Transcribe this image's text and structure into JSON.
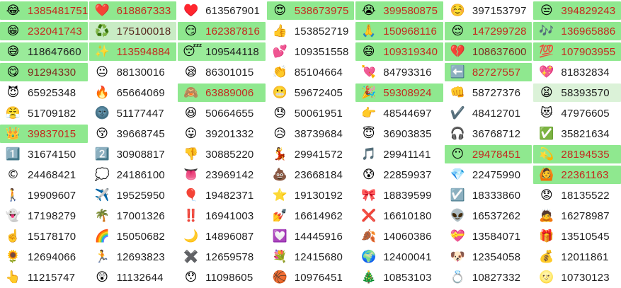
{
  "app": {
    "title": "emoji-usage-counter-grid"
  },
  "colors": {
    "flash_bg": "#8fe88f",
    "flash_text": "#c4281e",
    "flash_text_dark": "#7e2b1e",
    "fade_bg": "#c9ecc5",
    "fade_bg_light": "#dbf2d8",
    "idle_bg": "#ffffff",
    "idle_text": "#1f1f1f"
  },
  "grid": {
    "columns": 7,
    "rows": 14,
    "cells": [
      {
        "emoji": "😂",
        "name": "face-with-tears-of-joy",
        "value": "1385481751",
        "state": "flash"
      },
      {
        "emoji": "❤️",
        "name": "red-heart",
        "value": "618867333",
        "state": "flash"
      },
      {
        "emoji": "♥️",
        "name": "heart-suit",
        "value": "613567901",
        "state": "idle"
      },
      {
        "emoji": "😍",
        "name": "smiling-face-heart-eyes",
        "value": "538673975",
        "state": "flash"
      },
      {
        "emoji": "😭",
        "name": "loudly-crying-face",
        "value": "399580875",
        "state": "flash"
      },
      {
        "emoji": "☺️",
        "name": "smiling-face",
        "value": "397153797",
        "state": "idle"
      },
      {
        "emoji": "😒",
        "name": "unamused-face",
        "value": "394829243",
        "state": "flash"
      },
      {
        "emoji": "😁",
        "name": "beaming-face",
        "value": "232041743",
        "state": "flash"
      },
      {
        "emoji": "♻️",
        "name": "recycling-symbol",
        "value": "175100018",
        "state": "pale"
      },
      {
        "emoji": "😏",
        "name": "smirking-face",
        "value": "162387816",
        "state": "flash"
      },
      {
        "emoji": "👍",
        "name": "thumbs-up",
        "value": "153852719",
        "state": "idle"
      },
      {
        "emoji": "🙏",
        "name": "folded-hands",
        "value": "150968116",
        "state": "flash"
      },
      {
        "emoji": "😌",
        "name": "relieved-face",
        "value": "147299728",
        "state": "flash"
      },
      {
        "emoji": "🎶",
        "name": "musical-notes",
        "value": "136965886",
        "state": "flash"
      },
      {
        "emoji": "😅",
        "name": "grinning-face-with-sweat",
        "value": "118647660",
        "state": "green"
      },
      {
        "emoji": "✨",
        "name": "sparkles",
        "value": "113594884",
        "state": "flash"
      },
      {
        "emoji": "😴",
        "name": "sleeping-face",
        "value": "109544118",
        "state": "green"
      },
      {
        "emoji": "💕",
        "name": "two-hearts",
        "value": "109351558",
        "state": "idle"
      },
      {
        "emoji": "😄",
        "name": "grinning-face-smiling-eyes",
        "value": "109319340",
        "state": "flash"
      },
      {
        "emoji": "💔",
        "name": "broken-heart",
        "value": "108637600",
        "state": "flash2"
      },
      {
        "emoji": "💯",
        "name": "hundred-points",
        "value": "107903955",
        "state": "flash"
      },
      {
        "emoji": "😋",
        "name": "face-savoring-food",
        "value": "91294330",
        "state": "flash2"
      },
      {
        "emoji": "😐",
        "name": "neutral-face",
        "value": "88130016",
        "state": "idle"
      },
      {
        "emoji": "😪",
        "name": "sleepy-face",
        "value": "86301015",
        "state": "idle"
      },
      {
        "emoji": "👏",
        "name": "clapping-hands",
        "value": "85104664",
        "state": "idle"
      },
      {
        "emoji": "💘",
        "name": "heart-with-arrow",
        "value": "84793316",
        "state": "idle"
      },
      {
        "emoji": "⬅️",
        "name": "left-arrow",
        "value": "82727557",
        "state": "flash"
      },
      {
        "emoji": "💖",
        "name": "sparkling-heart",
        "value": "81832834",
        "state": "idle"
      },
      {
        "emoji": "😈",
        "name": "smiling-imp",
        "value": "65925348",
        "state": "idle"
      },
      {
        "emoji": "🔥",
        "name": "fire",
        "value": "65664069",
        "state": "idle"
      },
      {
        "emoji": "🙈",
        "name": "see-no-evil-monkey",
        "value": "63889006",
        "state": "flash"
      },
      {
        "emoji": "😬",
        "name": "grimacing-face",
        "value": "59672405",
        "state": "idle"
      },
      {
        "emoji": "🎉",
        "name": "party-popper",
        "value": "59308924",
        "state": "flash"
      },
      {
        "emoji": "👊",
        "name": "oncoming-fist",
        "value": "58727376",
        "state": "idle"
      },
      {
        "emoji": "😫",
        "name": "tired-face",
        "value": "58393570",
        "state": "pale2"
      },
      {
        "emoji": "😤",
        "name": "face-with-steam",
        "value": "51709182",
        "state": "idle"
      },
      {
        "emoji": "🌚",
        "name": "new-moon-face",
        "value": "51177447",
        "state": "idle"
      },
      {
        "emoji": "😆",
        "name": "grinning-squinting-face",
        "value": "50664655",
        "state": "idle"
      },
      {
        "emoji": "😓",
        "name": "downcast-face-sweat",
        "value": "50061951",
        "state": "idle"
      },
      {
        "emoji": "👉",
        "name": "backhand-index-right",
        "value": "48544697",
        "state": "idle"
      },
      {
        "emoji": "✔️",
        "name": "heavy-check-mark",
        "value": "48412701",
        "state": "idle"
      },
      {
        "emoji": "😻",
        "name": "heart-eyes-cat",
        "value": "47976605",
        "state": "idle"
      },
      {
        "emoji": "👑",
        "name": "crown",
        "value": "39837015",
        "state": "flash"
      },
      {
        "emoji": "😚",
        "name": "kissing-face-closed-eyes",
        "value": "39668745",
        "state": "idle"
      },
      {
        "emoji": "😛",
        "name": "face-with-tongue",
        "value": "39201332",
        "state": "idle"
      },
      {
        "emoji": "😥",
        "name": "sad-but-relieved-face",
        "value": "38739684",
        "state": "idle"
      },
      {
        "emoji": "😇",
        "name": "smiling-face-halo",
        "value": "36903835",
        "state": "idle"
      },
      {
        "emoji": "🎧",
        "name": "headphone",
        "value": "36768712",
        "state": "idle"
      },
      {
        "emoji": "✅",
        "name": "check-mark-button",
        "value": "35821634",
        "state": "idle"
      },
      {
        "emoji": "1️⃣",
        "name": "keycap-one",
        "value": "31674150",
        "state": "idle"
      },
      {
        "emoji": "2️⃣",
        "name": "keycap-two",
        "value": "30908817",
        "state": "idle"
      },
      {
        "emoji": "👎",
        "name": "thumbs-down",
        "value": "30885220",
        "state": "idle"
      },
      {
        "emoji": "💃",
        "name": "dancer",
        "value": "29941572",
        "state": "idle"
      },
      {
        "emoji": "🎵",
        "name": "musical-note",
        "value": "29941141",
        "state": "idle"
      },
      {
        "emoji": "😶",
        "name": "face-without-mouth",
        "value": "29478451",
        "state": "flash"
      },
      {
        "emoji": "💫",
        "name": "dizzy-star",
        "value": "28194535",
        "state": "flash"
      },
      {
        "emoji": "©",
        "name": "copyright",
        "value": "24468421",
        "state": "idle"
      },
      {
        "emoji": "💭",
        "name": "thought-balloon",
        "value": "24186100",
        "state": "idle"
      },
      {
        "emoji": "👅",
        "name": "tongue",
        "value": "23969142",
        "state": "idle"
      },
      {
        "emoji": "💩",
        "name": "pile-of-poo",
        "value": "23668184",
        "state": "idle"
      },
      {
        "emoji": "😰",
        "name": "anxious-face-sweat",
        "value": "22859937",
        "state": "idle"
      },
      {
        "emoji": "💎",
        "name": "gem-stone",
        "value": "22475990",
        "state": "idle"
      },
      {
        "emoji": "🙆",
        "name": "person-gesturing-ok",
        "value": "22361163",
        "state": "flash"
      },
      {
        "emoji": "🚶",
        "name": "pedestrian",
        "value": "19909607",
        "state": "idle"
      },
      {
        "emoji": "✈️",
        "name": "airplane",
        "value": "19525950",
        "state": "idle"
      },
      {
        "emoji": "🎈",
        "name": "balloon",
        "value": "19482371",
        "state": "idle"
      },
      {
        "emoji": "⭐",
        "name": "white-star",
        "value": "19130192",
        "state": "idle"
      },
      {
        "emoji": "🎀",
        "name": "ribbon-bow",
        "value": "18839599",
        "state": "idle"
      },
      {
        "emoji": "☑️",
        "name": "ballot-box-with-check",
        "value": "18333860",
        "state": "idle"
      },
      {
        "emoji": "😟",
        "name": "worried-face",
        "value": "18135522",
        "state": "idle"
      },
      {
        "emoji": "👻",
        "name": "ghost",
        "value": "17198279",
        "state": "idle"
      },
      {
        "emoji": "🌴",
        "name": "palm-tree",
        "value": "17001326",
        "state": "idle"
      },
      {
        "emoji": "‼️",
        "name": "double-exclamation",
        "value": "16941003",
        "state": "idle"
      },
      {
        "emoji": "💅",
        "name": "nail-polish",
        "value": "16614962",
        "state": "idle"
      },
      {
        "emoji": "❌",
        "name": "cross-mark",
        "value": "16610180",
        "state": "idle"
      },
      {
        "emoji": "👽",
        "name": "alien",
        "value": "16537262",
        "state": "idle"
      },
      {
        "emoji": "🙇",
        "name": "person-bowing",
        "value": "16278987",
        "state": "idle"
      },
      {
        "emoji": "☝️",
        "name": "index-pointing-up",
        "value": "15178170",
        "state": "idle"
      },
      {
        "emoji": "🌈",
        "name": "rainbow",
        "value": "15050682",
        "state": "idle"
      },
      {
        "emoji": "🌙",
        "name": "crescent-moon",
        "value": "14896087",
        "state": "idle"
      },
      {
        "emoji": "💟",
        "name": "heart-decoration",
        "value": "14445916",
        "state": "idle"
      },
      {
        "emoji": "🍂",
        "name": "fallen-leaf",
        "value": "14060386",
        "state": "idle"
      },
      {
        "emoji": "💝",
        "name": "heart-with-ribbon",
        "value": "13584071",
        "state": "idle"
      },
      {
        "emoji": "🎁",
        "name": "wrapped-gift",
        "value": "13510545",
        "state": "idle"
      },
      {
        "emoji": "🌻",
        "name": "sunflower",
        "value": "12694066",
        "state": "idle"
      },
      {
        "emoji": "🏃",
        "name": "runner",
        "value": "12693823",
        "state": "idle"
      },
      {
        "emoji": "✖️",
        "name": "heavy-multiplication-x",
        "value": "12659578",
        "state": "idle"
      },
      {
        "emoji": "💐",
        "name": "bouquet",
        "value": "12415680",
        "state": "idle"
      },
      {
        "emoji": "🌍",
        "name": "globe-europe-africa",
        "value": "12400041",
        "state": "idle"
      },
      {
        "emoji": "🐶",
        "name": "dog-face",
        "value": "12354058",
        "state": "idle"
      },
      {
        "emoji": "💰",
        "name": "money-bag",
        "value": "12011861",
        "state": "idle"
      },
      {
        "emoji": "👆",
        "name": "backhand-index-up",
        "value": "11215747",
        "state": "idle"
      },
      {
        "emoji": "😲",
        "name": "astonished-face",
        "value": "11132644",
        "state": "idle"
      },
      {
        "emoji": "😯",
        "name": "hushed-face",
        "value": "11098605",
        "state": "idle"
      },
      {
        "emoji": "🏀",
        "name": "basketball",
        "value": "10976451",
        "state": "idle"
      },
      {
        "emoji": "🎄",
        "name": "christmas-tree",
        "value": "10853103",
        "state": "idle"
      },
      {
        "emoji": "💍",
        "name": "ring",
        "value": "10827332",
        "state": "idle"
      },
      {
        "emoji": "🌝",
        "name": "full-moon-face",
        "value": "10730123",
        "state": "idle"
      }
    ]
  }
}
